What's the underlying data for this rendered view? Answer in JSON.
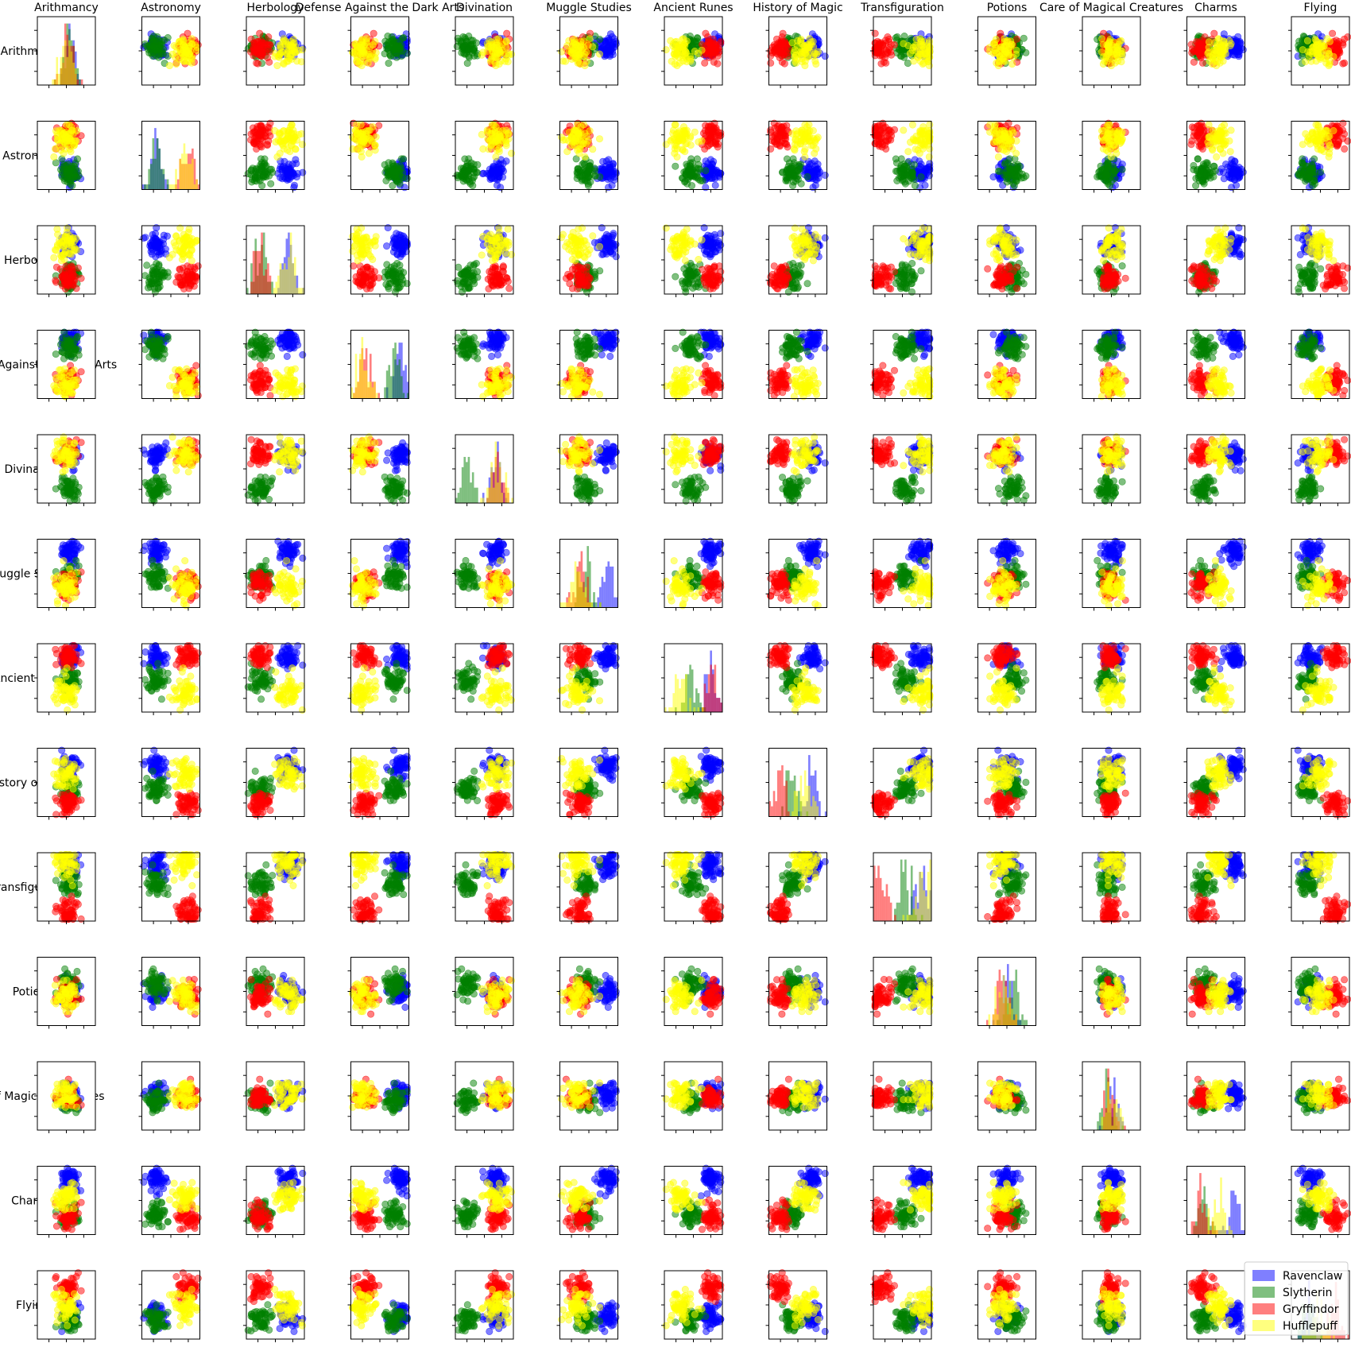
{
  "chart_data": {
    "type": "scatter",
    "title": "",
    "subjects": [
      "Arithmancy",
      "Astronomy",
      "Herbology",
      "Defense Against the Dark Arts",
      "Divination",
      "Muggle Studies",
      "Ancient Runes",
      "History of Magic",
      "Transfiguration",
      "Potions",
      "Care of Magical Creatures",
      "Charms",
      "Flying"
    ],
    "diagonal": "histogram",
    "off_diagonal": "scatter",
    "grid": false,
    "legend_position": "lower-right",
    "series": [
      {
        "name": "Ravenclaw",
        "color": "#0000ff"
      },
      {
        "name": "Slytherin",
        "color": "#008000"
      },
      {
        "name": "Gryffindor",
        "color": "#ff0000"
      },
      {
        "name": "Hufflepuff",
        "color": "#ffff00"
      }
    ],
    "house_means": {
      "Ravenclaw": [
        0.55,
        0.25,
        0.75,
        0.85,
        0.7,
        0.82,
        0.8,
        0.75,
        0.8,
        0.5,
        0.52,
        0.82,
        0.35
      ],
      "Slytherin": [
        0.55,
        0.25,
        0.25,
        0.75,
        0.22,
        0.45,
        0.45,
        0.4,
        0.55,
        0.6,
        0.45,
        0.3,
        0.3
      ],
      "Gryffindor": [
        0.52,
        0.8,
        0.25,
        0.25,
        0.72,
        0.35,
        0.82,
        0.18,
        0.15,
        0.42,
        0.48,
        0.25,
        0.75
      ],
      "Hufflepuff": [
        0.52,
        0.75,
        0.72,
        0.2,
        0.7,
        0.32,
        0.3,
        0.62,
        0.85,
        0.45,
        0.5,
        0.55,
        0.48
      ]
    },
    "house_spread": {
      "Ravenclaw": 0.09,
      "Slytherin": 0.09,
      "Gryffindor": 0.09,
      "Hufflepuff": 0.11
    },
    "points_per_house": 55,
    "marker_opacity": 0.5,
    "histogram_opacity": 0.5,
    "histogram_bins": 28
  }
}
